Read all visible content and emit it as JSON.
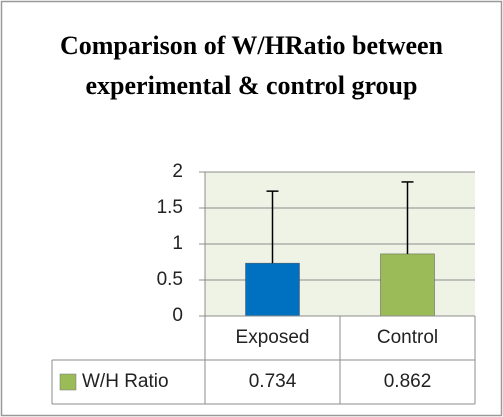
{
  "chart_data": {
    "type": "bar",
    "title": "Comparison of W/HRatio between experimental & control group",
    "categories": [
      "Exposed",
      "Control"
    ],
    "series": [
      {
        "name": "W/H Ratio",
        "color": "#9bbb59",
        "point_colors": [
          "#0070c0",
          "#9bbb59"
        ],
        "values": [
          0.734,
          0.862
        ],
        "errors": [
          1.0,
          1.0
        ]
      }
    ],
    "ylim": [
      0,
      2
    ],
    "yticks": [
      0,
      0.5,
      1,
      1.5,
      2
    ],
    "grid": true,
    "data_table": true
  }
}
